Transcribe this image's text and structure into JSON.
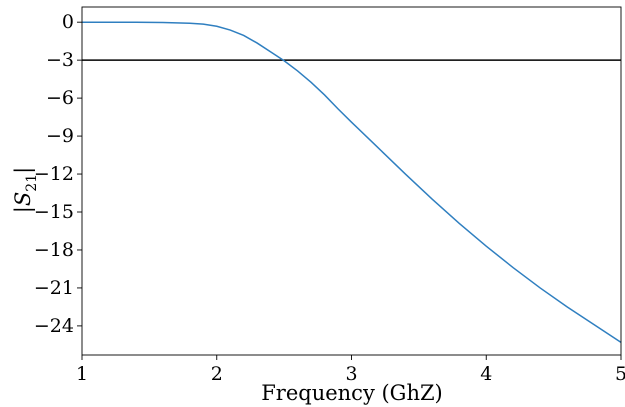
{
  "chart_data": {
    "type": "line",
    "xlabel": "Frequency (GhZ)",
    "ylabel": "|S21|",
    "ylabel_main": "|S",
    "ylabel_sub": "21",
    "ylabel_end": "|",
    "xlim": [
      1,
      5
    ],
    "ylim": [
      -26.3,
      1.2
    ],
    "x_ticks": [
      1,
      2,
      3,
      4,
      5
    ],
    "x_tick_labels": [
      "1",
      "2",
      "3",
      "4",
      "5"
    ],
    "y_ticks": [
      0,
      -3,
      -6,
      -9,
      -12,
      -15,
      -18,
      -21,
      -24
    ],
    "y_tick_labels": [
      "0",
      "−3",
      "−6",
      "−9",
      "−12",
      "−15",
      "−18",
      "−21",
      "−24"
    ],
    "grid": false,
    "series": [
      {
        "color": "#2f7fc0",
        "x": [
          1.0,
          1.2,
          1.4,
          1.6,
          1.8,
          1.9,
          2.0,
          2.1,
          2.2,
          2.3,
          2.4,
          2.5,
          2.6,
          2.7,
          2.8,
          2.9,
          3.0,
          3.2,
          3.4,
          3.6,
          3.8,
          4.0,
          4.2,
          4.4,
          4.6,
          4.8,
          5.0
        ],
        "y": [
          0.0,
          0.0,
          0.0,
          -0.02,
          -0.08,
          -0.15,
          -0.32,
          -0.62,
          -1.05,
          -1.65,
          -2.35,
          -3.05,
          -3.85,
          -4.75,
          -5.75,
          -6.85,
          -7.9,
          -9.95,
          -12.0,
          -14.0,
          -15.9,
          -17.7,
          -19.4,
          -21.0,
          -22.5,
          -23.9,
          -25.3
        ]
      }
    ],
    "reference_lines": [
      {
        "y": -3,
        "color": "#000000"
      }
    ]
  }
}
